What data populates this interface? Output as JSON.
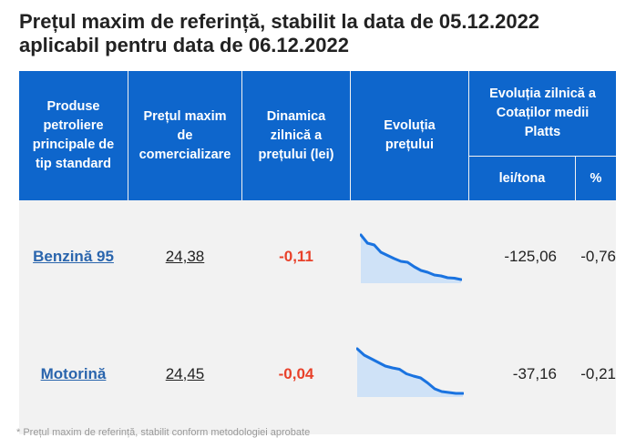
{
  "title": {
    "line1": "Prețul maxim de referință, stabilit la data de 05.12.2022",
    "line2": "aplicabil pentru data de 06.12.2022"
  },
  "table": {
    "headers": {
      "product": "Produse petroliere principale de tip standard",
      "max_price": "Prețul maxim de comercializare",
      "daily_dynamics": "Dinamica zilnică a prețului (lei)",
      "price_evolution": "Evoluția prețului",
      "platts": "Evoluția zilnică a Cotaților medii Platts",
      "lei_per_ton": "lei/tona",
      "percent": "%"
    },
    "rows": [
      {
        "product": "Benzină 95",
        "max_price": "24,38",
        "daily_dynamics": "-0,11",
        "platts_lei_per_ton": "-125,06",
        "platts_percent": "-0,76",
        "sparkline": [
          1.0,
          0.82,
          0.78,
          0.62,
          0.55,
          0.48,
          0.42,
          0.4,
          0.3,
          0.22,
          0.18,
          0.12,
          0.1,
          0.06,
          0.05,
          0.02
        ]
      },
      {
        "product": "Motorină",
        "max_price": "24,45",
        "daily_dynamics": "-0,04",
        "platts_lei_per_ton": "-37,16",
        "platts_percent": "-0,21",
        "sparkline": [
          1.0,
          0.86,
          0.78,
          0.7,
          0.62,
          0.58,
          0.55,
          0.45,
          0.4,
          0.36,
          0.25,
          0.12,
          0.06,
          0.04,
          0.02,
          0.02
        ]
      }
    ]
  },
  "colors": {
    "header_bg": "#0e66cc",
    "product_link": "#2a65ad",
    "negative": "#e8412a",
    "spark_line": "#1a73e0",
    "spark_fill": "#cfe2f7"
  },
  "footnote": "* Prețul maxim de referință, stabilit conform metodologiei aprobate"
}
